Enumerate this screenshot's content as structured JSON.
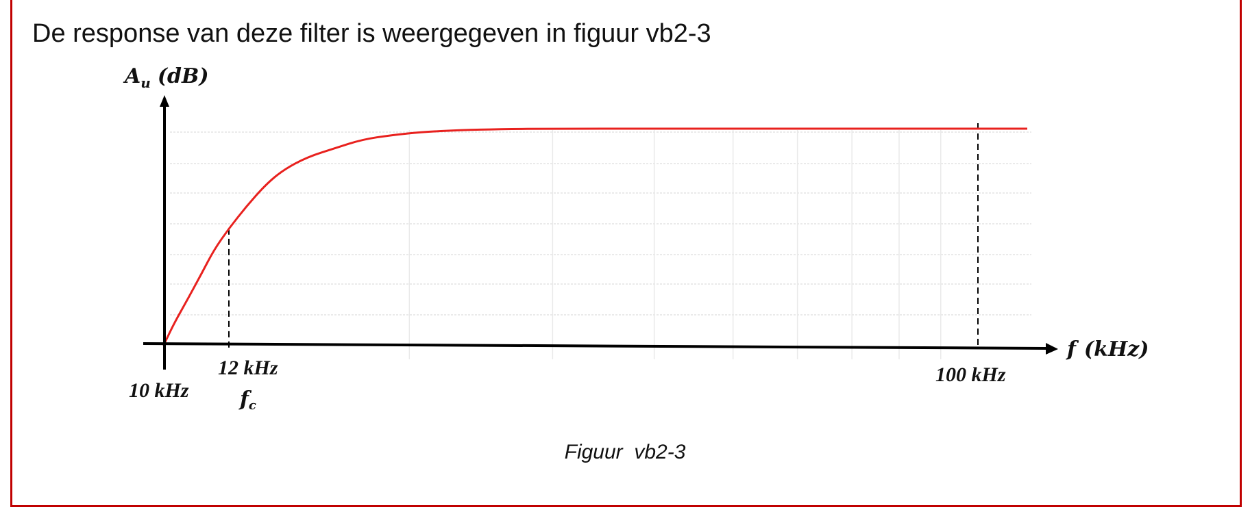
{
  "intro_text": "De response van deze filter is weergegeven in figuur vb2-3",
  "caption": "Figuur  vb2-3",
  "chart_data": {
    "type": "line",
    "title": "",
    "ylabel": {
      "main": "A",
      "sub": "u",
      "unit": "(dB)"
    },
    "xlabel": {
      "main": "f",
      "unit": "(kHz)"
    },
    "ticks": [
      {
        "x": 10,
        "label": "10 kHz"
      },
      {
        "x": 12,
        "label": "12 kHz",
        "sublabel_main": "f",
        "sublabel_sub": "c"
      },
      {
        "x": 100,
        "label": "100 kHz"
      }
    ],
    "series": [
      {
        "color": "#e8211e",
        "x": [
          9.97,
          10.3,
          10.7,
          11.1,
          11.5,
          12,
          12.6,
          13.3,
          14,
          15,
          16.2,
          17.5,
          19,
          20.8,
          23,
          26,
          30,
          40,
          60,
          100,
          115
        ],
        "y": [
          0,
          0.11,
          0.22,
          0.33,
          0.44,
          0.54,
          0.64,
          0.74,
          0.81,
          0.87,
          0.91,
          0.95,
          0.97,
          0.985,
          0.993,
          0.998,
          1,
          1,
          1,
          1,
          1
        ]
      }
    ],
    "reference_lines": [
      12,
      100
    ],
    "grid": true,
    "legend": "none"
  }
}
